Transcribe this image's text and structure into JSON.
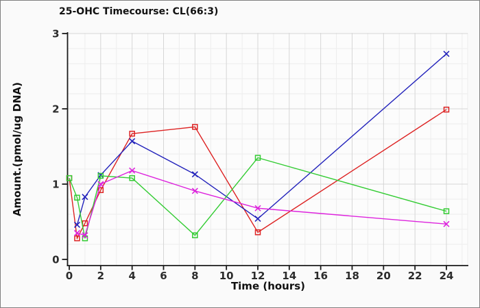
{
  "window": {
    "background": "#fafafa",
    "border_color": "#7f7f7f"
  },
  "chart_data": {
    "type": "line",
    "title": "25-OHC Timecourse: CL(66:3)",
    "xlabel": "Time (hours)",
    "ylabel": "Amount.(pmol/ug DNA)",
    "xlim": [
      -0.15,
      25.4
    ],
    "ylim": [
      -0.08,
      3.02
    ],
    "xticks": [
      0,
      2,
      4,
      6,
      8,
      10,
      12,
      14,
      16,
      18,
      20,
      22,
      24
    ],
    "yticks": [
      0,
      1,
      2,
      3
    ],
    "grid": {
      "show": true,
      "minor_x_step_hours": 1,
      "minor_y_step": 0.2,
      "major_color": "#d6d6d6",
      "minor_color": "#ededed"
    },
    "legend_position": "none",
    "series": [
      {
        "name": "red-squares",
        "color": "#dd2222",
        "marker": "open-square",
        "x": [
          0,
          0.5,
          1,
          2,
          4,
          8,
          12,
          24
        ],
        "y": [
          1.08,
          0.28,
          0.48,
          0.92,
          1.67,
          1.76,
          0.36,
          1.99
        ]
      },
      {
        "name": "blue-x",
        "color": "#2222bb",
        "marker": "x",
        "x": [
          0.5,
          1,
          2,
          4,
          8,
          12,
          24
        ],
        "y": [
          0.46,
          0.83,
          1.12,
          1.57,
          1.13,
          0.54,
          2.73
        ]
      },
      {
        "name": "green-squares",
        "color": "#33cc33",
        "marker": "open-square",
        "x": [
          0,
          0.5,
          1,
          2,
          4,
          8,
          12,
          24
        ],
        "y": [
          1.08,
          0.82,
          0.28,
          1.11,
          1.08,
          0.32,
          1.35,
          0.64
        ]
      },
      {
        "name": "magenta-x",
        "color": "#dd22dd",
        "marker": "x",
        "x": [
          0.5,
          1,
          2,
          4,
          8,
          12,
          24
        ],
        "y": [
          0.35,
          0.32,
          1.0,
          1.18,
          0.91,
          0.68,
          0.47
        ]
      }
    ]
  }
}
